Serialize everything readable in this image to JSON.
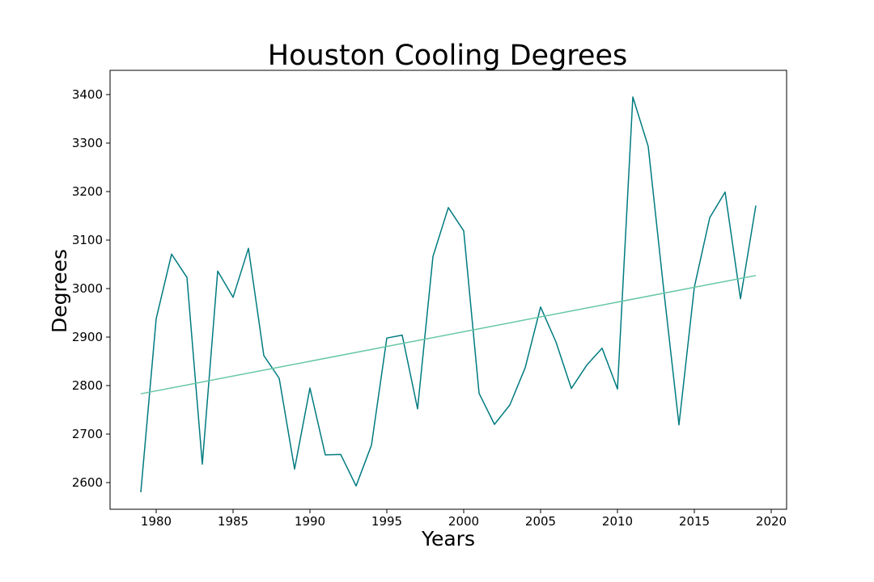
{
  "chart_data": {
    "type": "line",
    "title": "Houston Cooling Degrees",
    "xlabel": "Years",
    "ylabel": "Degrees",
    "xlim": [
      1977,
      2021
    ],
    "ylim": [
      2545,
      3450
    ],
    "xticks": [
      1980,
      1985,
      1990,
      1995,
      2000,
      2005,
      2010,
      2015,
      2020
    ],
    "yticks": [
      2600,
      2700,
      2800,
      2900,
      3000,
      3100,
      3200,
      3300,
      3400
    ],
    "grid": false,
    "legend": "none",
    "x": [
      1979,
      1980,
      1981,
      1982,
      1983,
      1984,
      1985,
      1986,
      1987,
      1988,
      1989,
      1990,
      1991,
      1992,
      1993,
      1994,
      1995,
      1996,
      1997,
      1998,
      1999,
      2000,
      2001,
      2002,
      2003,
      2004,
      2005,
      2006,
      2007,
      2008,
      2009,
      2010,
      2011,
      2012,
      2013,
      2014,
      2015,
      2016,
      2017,
      2018,
      2019
    ],
    "series": [
      {
        "color": "#007b80",
        "values": [
          2580,
          2938,
          3071,
          3023,
          2638,
          3036,
          2982,
          3083,
          2862,
          2815,
          2628,
          2795,
          2657,
          2658,
          2593,
          2677,
          2898,
          2904,
          2752,
          3066,
          3167,
          3119,
          2784,
          2720,
          2760,
          2837,
          2962,
          2890,
          2794,
          2842,
          2877,
          2793,
          3395,
          3293,
          3000,
          2719,
          3003,
          3146,
          3199,
          2979,
          3171
        ]
      },
      {
        "color": "#66c7a4",
        "style": "trend",
        "x": [
          1979,
          2019
        ],
        "values": [
          2783,
          3027
        ]
      }
    ]
  }
}
